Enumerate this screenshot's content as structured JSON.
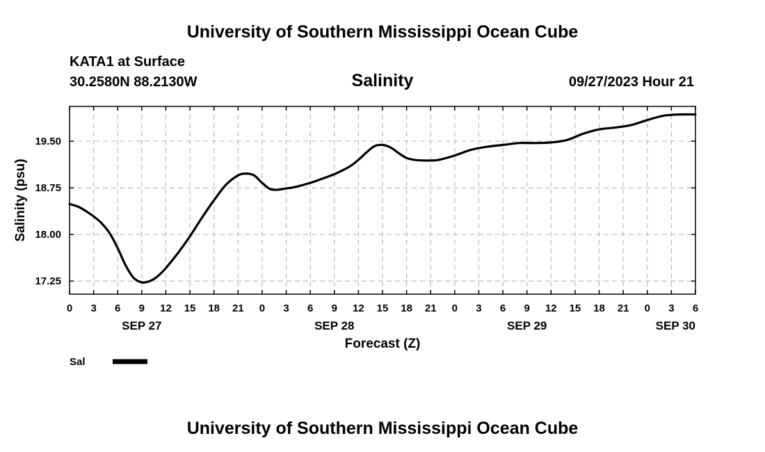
{
  "header": {
    "title": "University of Southern Mississippi Ocean Cube",
    "station": "KATA1 at Surface",
    "coords": "30.2580N  88.2130W",
    "timestamp": "09/27/2023 Hour 21",
    "footer_title": "University of Southern Mississippi Ocean Cube"
  },
  "legend": {
    "label": "Sal"
  },
  "colors": {
    "line": "#000000",
    "grid": "#bbbbbb"
  },
  "chart_data": {
    "type": "line",
    "title": "Salinity",
    "xlabel": "Forecast (Z)",
    "ylabel": "Salinity (psu)",
    "xlim": [
      0,
      78
    ],
    "ylim": [
      17.04,
      20.06
    ],
    "grid": true,
    "legend_position": "bottom-left",
    "yticks": [
      17.25,
      18.0,
      18.75,
      19.5
    ],
    "ytick_labels": [
      "17.25",
      "18.00",
      "18.75",
      "19.50"
    ],
    "xtick_labels": [
      "0",
      "3",
      "6",
      "9",
      "12",
      "15",
      "18",
      "21",
      "0",
      "3",
      "6",
      "9",
      "12",
      "15",
      "18",
      "21",
      "0",
      "3",
      "6",
      "9",
      "12",
      "15",
      "18",
      "21",
      "0",
      "3",
      "6"
    ],
    "date_labels": [
      {
        "x": 9,
        "label": "SEP 27"
      },
      {
        "x": 33,
        "label": "SEP 28"
      },
      {
        "x": 57,
        "label": "SEP 29"
      },
      {
        "x": 78,
        "label": "SEP 30"
      }
    ],
    "series": [
      {
        "name": "Sal",
        "x": [
          0,
          1,
          2,
          3,
          4,
          5,
          6,
          7,
          8,
          9,
          10,
          11,
          12,
          13.5,
          15,
          16.5,
          18,
          19.5,
          21,
          22,
          23,
          24,
          25,
          26,
          27,
          28,
          30,
          32,
          33,
          34,
          35,
          36,
          37,
          38,
          39,
          40,
          41,
          42,
          43,
          44,
          45,
          46,
          48,
          50,
          52,
          54,
          56,
          58,
          60,
          62,
          64,
          66,
          68,
          70,
          72,
          74,
          76,
          78
        ],
        "values": [
          18.49,
          18.45,
          18.38,
          18.29,
          18.18,
          18.02,
          17.78,
          17.5,
          17.3,
          17.23,
          17.25,
          17.33,
          17.46,
          17.7,
          17.97,
          18.27,
          18.55,
          18.8,
          18.95,
          18.98,
          18.95,
          18.83,
          18.73,
          18.72,
          18.74,
          18.76,
          18.83,
          18.92,
          18.97,
          19.03,
          19.1,
          19.2,
          19.32,
          19.42,
          19.44,
          19.4,
          19.31,
          19.23,
          19.2,
          19.19,
          19.19,
          19.2,
          19.27,
          19.36,
          19.41,
          19.44,
          19.47,
          19.47,
          19.48,
          19.52,
          19.62,
          19.69,
          19.72,
          19.76,
          19.84,
          19.91,
          19.93,
          19.93
        ]
      }
    ]
  }
}
